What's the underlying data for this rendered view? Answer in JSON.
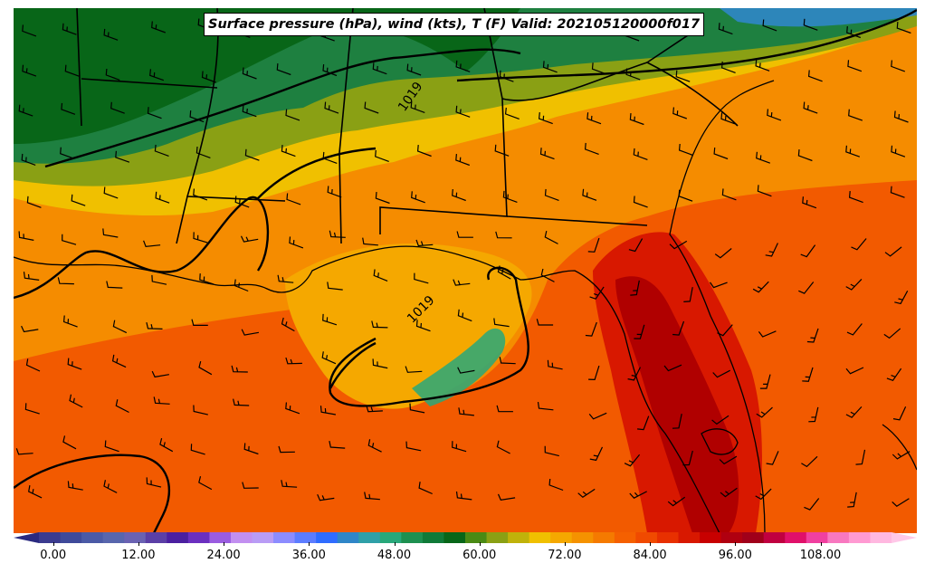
{
  "title": "Surface pressure (hPa), wind (kts), T (F) Valid: 202105120000f017",
  "isobar_labels": [
    "1019",
    "1019"
  ],
  "colorbar": {
    "min": -2,
    "max": 118,
    "step": 3,
    "tick_labels": [
      "0.00",
      "12.00",
      "24.00",
      "36.00",
      "48.00",
      "60.00",
      "72.00",
      "84.00",
      "96.00",
      "108.00"
    ],
    "tick_values": [
      0,
      12,
      24,
      36,
      48,
      60,
      72,
      84,
      96,
      108
    ],
    "colors": [
      "#3b3b8f",
      "#3f4a9a",
      "#4b5aa6",
      "#5866ad",
      "#6a62b2",
      "#5b3fa6",
      "#4b1fa0",
      "#6b2fc0",
      "#9a5ce0",
      "#c28ff0",
      "#b99cf5",
      "#8c8cff",
      "#5c7cff",
      "#2f6cff",
      "#2f86c8",
      "#2fa0a8",
      "#28a87a",
      "#1e9050",
      "#107a38",
      "#086618",
      "#4a8a14",
      "#8aa014",
      "#c0b20a",
      "#f0c000",
      "#f5a800",
      "#f59200",
      "#f57a00",
      "#f56000",
      "#f04a00",
      "#e83000",
      "#d81800",
      "#c80000",
      "#b00010",
      "#a0001a",
      "#c00040",
      "#e0106a",
      "#f040a0",
      "#f878c0",
      "#ff9ad2",
      "#ffb8e0"
    ]
  },
  "map_colors": {
    "deep_green": "#086618",
    "green": "#1e8040",
    "olive": "#8aa014",
    "yellow": "#f0c000",
    "light_orange": "#f5a800",
    "orange": "#f58c00",
    "red_orange": "#f25a00",
    "red": "#d81800",
    "dark_red": "#b00000"
  }
}
